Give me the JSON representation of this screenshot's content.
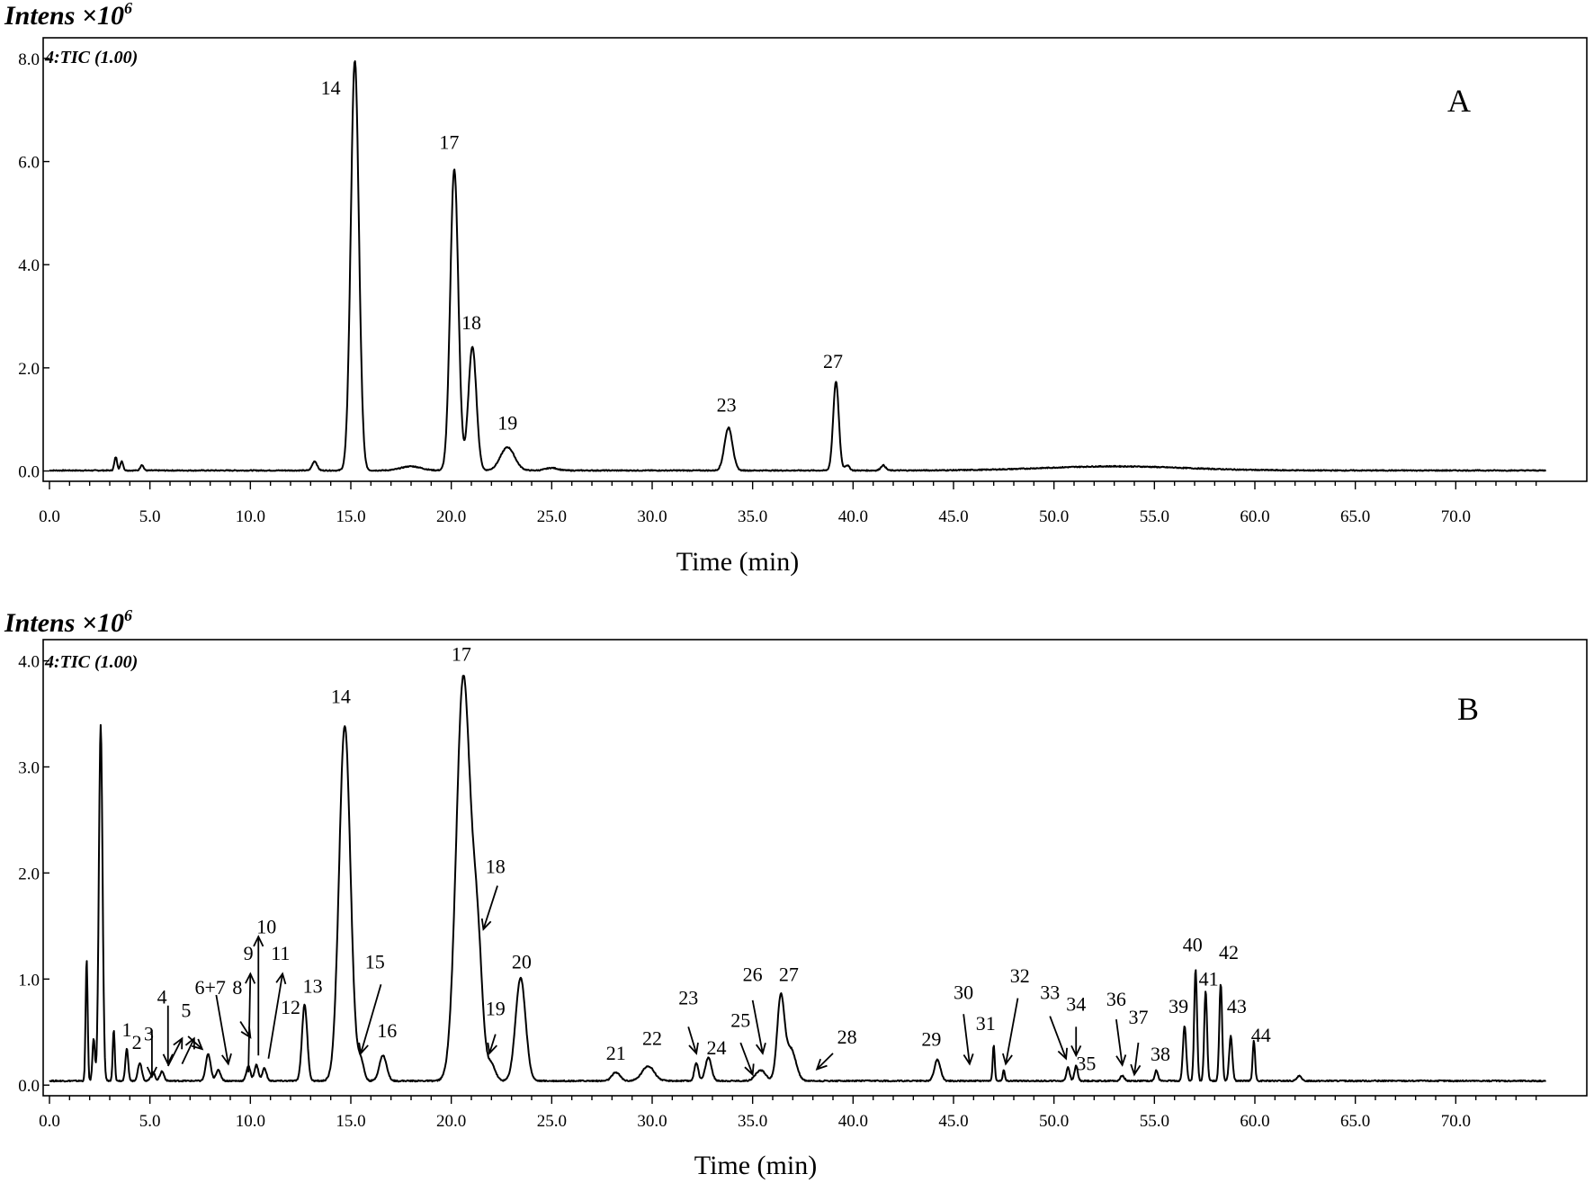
{
  "chart_data": [
    {
      "type": "line",
      "panel_label": "A",
      "ylabel": "Intens ×10",
      "ylabel_exp": "6",
      "trace_label": "4:TIC (1.00)",
      "xlabel": "Time  (min)",
      "xlim": [
        0,
        75
      ],
      "ylim": [
        -0.2,
        8.4
      ],
      "x_ticks": [
        "0.0",
        "5.0",
        "10.0",
        "15.0",
        "20.0",
        "25.0",
        "30.0",
        "35.0",
        "40.0",
        "45.0",
        "50.0",
        "55.0",
        "60.0",
        "65.0",
        "70.0"
      ],
      "y_ticks": [
        "0.0",
        "2.0",
        "4.0",
        "6.0",
        "8.0"
      ],
      "baseline": 0.01,
      "peaks": [
        {
          "t": 3.3,
          "h": 0.26,
          "w": 0.07
        },
        {
          "t": 3.6,
          "h": 0.18,
          "w": 0.07
        },
        {
          "t": 4.6,
          "h": 0.11,
          "w": 0.08
        },
        {
          "t": 13.2,
          "h": 0.18,
          "w": 0.12
        },
        {
          "t": 15.2,
          "h": 7.95,
          "w": 0.2
        },
        {
          "t": 18.0,
          "h": 0.08,
          "w": 0.5
        },
        {
          "t": 20.15,
          "h": 5.85,
          "w": 0.2
        },
        {
          "t": 21.05,
          "h": 2.4,
          "w": 0.2
        },
        {
          "t": 22.8,
          "h": 0.45,
          "w": 0.35
        },
        {
          "t": 25.0,
          "h": 0.05,
          "w": 0.3
        },
        {
          "t": 33.8,
          "h": 0.83,
          "w": 0.2
        },
        {
          "t": 39.15,
          "h": 1.72,
          "w": 0.14
        },
        {
          "t": 39.7,
          "h": 0.1,
          "w": 0.12
        },
        {
          "t": 41.5,
          "h": 0.1,
          "w": 0.12
        },
        {
          "t": 53.0,
          "h": 0.08,
          "w": 3.5
        }
      ],
      "annotations": [
        {
          "label": "14",
          "x": 14.0,
          "y": 7.3
        },
        {
          "label": "17",
          "x": 19.9,
          "y": 6.25
        },
        {
          "label": "18",
          "x": 21.0,
          "y": 2.75
        },
        {
          "label": "19",
          "x": 22.8,
          "y": 0.8
        },
        {
          "label": "23",
          "x": 33.7,
          "y": 1.15
        },
        {
          "label": "27",
          "x": 39.0,
          "y": 2.0
        }
      ]
    },
    {
      "type": "line",
      "panel_label": "B",
      "ylabel": "Intens ×10",
      "ylabel_exp": "6",
      "trace_label": "4:TIC (1.00)",
      "xlabel": "Time  (min)",
      "xlim": [
        0,
        75
      ],
      "ylim": [
        -0.1,
        4.2
      ],
      "x_ticks": [
        "0.0",
        "5.0",
        "10.0",
        "15.0",
        "20.0",
        "25.0",
        "30.0",
        "35.0",
        "40.0",
        "45.0",
        "50.0",
        "55.0",
        "60.0",
        "65.0",
        "70.0"
      ],
      "y_ticks": [
        "0.0",
        "1.0",
        "2.0",
        "3.0",
        "4.0"
      ],
      "baseline": 0.04,
      "peaks": [
        {
          "t": 1.85,
          "h": 1.15,
          "w": 0.05
        },
        {
          "t": 2.2,
          "h": 0.4,
          "w": 0.06
        },
        {
          "t": 2.55,
          "h": 3.35,
          "w": 0.09
        },
        {
          "t": 3.2,
          "h": 0.48,
          "w": 0.05
        },
        {
          "t": 3.85,
          "h": 0.3,
          "w": 0.07
        },
        {
          "t": 4.5,
          "h": 0.17,
          "w": 0.1
        },
        {
          "t": 5.15,
          "h": 0.08,
          "w": 0.1
        },
        {
          "t": 5.6,
          "h": 0.09,
          "w": 0.1
        },
        {
          "t": 7.9,
          "h": 0.25,
          "w": 0.12
        },
        {
          "t": 8.4,
          "h": 0.1,
          "w": 0.12
        },
        {
          "t": 9.9,
          "h": 0.14,
          "w": 0.1
        },
        {
          "t": 10.3,
          "h": 0.15,
          "w": 0.1
        },
        {
          "t": 10.7,
          "h": 0.12,
          "w": 0.1
        },
        {
          "t": 12.7,
          "h": 0.72,
          "w": 0.13
        },
        {
          "t": 14.7,
          "h": 3.35,
          "w": 0.28
        },
        {
          "t": 15.5,
          "h": 0.18,
          "w": 0.15
        },
        {
          "t": 16.6,
          "h": 0.24,
          "w": 0.18
        },
        {
          "t": 20.6,
          "h": 3.8,
          "w": 0.35
        },
        {
          "t": 21.3,
          "h": 1.2,
          "w": 0.25
        },
        {
          "t": 22.0,
          "h": 0.15,
          "w": 0.2
        },
        {
          "t": 23.45,
          "h": 0.97,
          "w": 0.25
        },
        {
          "t": 28.2,
          "h": 0.08,
          "w": 0.2
        },
        {
          "t": 29.8,
          "h": 0.14,
          "w": 0.3
        },
        {
          "t": 32.2,
          "h": 0.17,
          "w": 0.1
        },
        {
          "t": 32.8,
          "h": 0.22,
          "w": 0.15
        },
        {
          "t": 35.4,
          "h": 0.1,
          "w": 0.25
        },
        {
          "t": 36.4,
          "h": 0.78,
          "w": 0.18
        },
        {
          "t": 36.9,
          "h": 0.3,
          "w": 0.25
        },
        {
          "t": 44.2,
          "h": 0.2,
          "w": 0.15
        },
        {
          "t": 47.0,
          "h": 0.34,
          "w": 0.05
        },
        {
          "t": 47.5,
          "h": 0.1,
          "w": 0.05
        },
        {
          "t": 50.7,
          "h": 0.13,
          "w": 0.08
        },
        {
          "t": 51.1,
          "h": 0.14,
          "w": 0.08
        },
        {
          "t": 53.4,
          "h": 0.05,
          "w": 0.1
        },
        {
          "t": 55.1,
          "h": 0.1,
          "w": 0.08
        },
        {
          "t": 56.5,
          "h": 0.52,
          "w": 0.08
        },
        {
          "t": 57.05,
          "h": 1.05,
          "w": 0.07
        },
        {
          "t": 57.55,
          "h": 0.85,
          "w": 0.07
        },
        {
          "t": 58.3,
          "h": 0.92,
          "w": 0.07
        },
        {
          "t": 58.8,
          "h": 0.42,
          "w": 0.08
        },
        {
          "t": 59.95,
          "h": 0.38,
          "w": 0.06
        },
        {
          "t": 62.2,
          "h": 0.05,
          "w": 0.1
        }
      ],
      "annotations": [
        {
          "label": "1",
          "x": 3.85,
          "y": 0.46
        },
        {
          "label": "2",
          "x": 4.35,
          "y": 0.34
        },
        {
          "label": "3",
          "x": 4.95,
          "y": 0.42
        },
        {
          "label": "4",
          "x": 5.6,
          "y": 0.77
        },
        {
          "label": "5",
          "x": 6.8,
          "y": 0.64
        },
        {
          "label": "6+7",
          "x": 8.0,
          "y": 0.86
        },
        {
          "label": "8",
          "x": 9.35,
          "y": 0.86
        },
        {
          "label": "9",
          "x": 9.9,
          "y": 1.18
        },
        {
          "label": "10",
          "x": 10.8,
          "y": 1.43
        },
        {
          "label": "11",
          "x": 11.5,
          "y": 1.18
        },
        {
          "label": "12",
          "x": 12.0,
          "y": 0.67
        },
        {
          "label": "13",
          "x": 13.1,
          "y": 0.87
        },
        {
          "label": "14",
          "x": 14.5,
          "y": 3.6
        },
        {
          "label": "15",
          "x": 16.2,
          "y": 1.1
        },
        {
          "label": "16",
          "x": 16.8,
          "y": 0.45
        },
        {
          "label": "17",
          "x": 20.5,
          "y": 4.0
        },
        {
          "label": "18",
          "x": 22.2,
          "y": 2.0
        },
        {
          "label": "19",
          "x": 22.2,
          "y": 0.66
        },
        {
          "label": "20",
          "x": 23.5,
          "y": 1.1
        },
        {
          "label": "21",
          "x": 28.2,
          "y": 0.24
        },
        {
          "label": "22",
          "x": 30.0,
          "y": 0.38
        },
        {
          "label": "23",
          "x": 31.8,
          "y": 0.76
        },
        {
          "label": "24",
          "x": 33.2,
          "y": 0.29
        },
        {
          "label": "25",
          "x": 34.4,
          "y": 0.55
        },
        {
          "label": "26",
          "x": 35.0,
          "y": 0.98
        },
        {
          "label": "27",
          "x": 36.8,
          "y": 0.98
        },
        {
          "label": "28",
          "x": 39.7,
          "y": 0.39
        },
        {
          "label": "29",
          "x": 43.9,
          "y": 0.37
        },
        {
          "label": "30",
          "x": 45.5,
          "y": 0.81
        },
        {
          "label": "31",
          "x": 46.6,
          "y": 0.52
        },
        {
          "label": "32",
          "x": 48.3,
          "y": 0.97
        },
        {
          "label": "33",
          "x": 49.8,
          "y": 0.81
        },
        {
          "label": "34",
          "x": 51.1,
          "y": 0.7
        },
        {
          "label": "35",
          "x": 51.6,
          "y": 0.14
        },
        {
          "label": "36",
          "x": 53.1,
          "y": 0.75
        },
        {
          "label": "37",
          "x": 54.2,
          "y": 0.58
        },
        {
          "label": "38",
          "x": 55.3,
          "y": 0.23
        },
        {
          "label": "39",
          "x": 56.2,
          "y": 0.68
        },
        {
          "label": "40",
          "x": 56.9,
          "y": 1.26
        },
        {
          "label": "41",
          "x": 57.7,
          "y": 0.94
        },
        {
          "label": "42",
          "x": 58.7,
          "y": 1.19
        },
        {
          "label": "43",
          "x": 59.1,
          "y": 0.68
        },
        {
          "label": "44",
          "x": 60.3,
          "y": 0.41
        }
      ],
      "arrows": [
        {
          "from": [
            5.1,
            0.52
          ],
          "to": [
            5.1,
            0.08
          ]
        },
        {
          "from": [
            5.9,
            0.75
          ],
          "to": [
            5.9,
            0.2
          ]
        },
        {
          "from": [
            5.9,
            0.18
          ],
          "to": [
            6.6,
            0.44
          ]
        },
        {
          "from": [
            6.6,
            0.2
          ],
          "to": [
            7.2,
            0.44
          ]
        },
        {
          "from": [
            6.9,
            0.46
          ],
          "to": [
            7.6,
            0.34
          ]
        },
        {
          "from": [
            8.3,
            0.85
          ],
          "to": [
            8.9,
            0.2
          ]
        },
        {
          "from": [
            9.5,
            0.6
          ],
          "to": [
            10.0,
            0.45
          ]
        },
        {
          "from": [
            9.9,
            0.12
          ],
          "to": [
            10.0,
            1.05
          ]
        },
        {
          "from": [
            10.4,
            0.28
          ],
          "to": [
            10.4,
            1.4
          ]
        },
        {
          "from": [
            10.9,
            0.25
          ],
          "to": [
            11.6,
            1.05
          ]
        },
        {
          "from": [
            16.5,
            0.95
          ],
          "to": [
            15.5,
            0.3
          ]
        },
        {
          "from": [
            22.3,
            1.88
          ],
          "to": [
            21.6,
            1.47
          ]
        },
        {
          "from": [
            22.2,
            0.48
          ],
          "to": [
            21.9,
            0.3
          ]
        },
        {
          "from": [
            31.8,
            0.55
          ],
          "to": [
            32.2,
            0.3
          ]
        },
        {
          "from": [
            34.4,
            0.4
          ],
          "to": [
            35.0,
            0.1
          ]
        },
        {
          "from": [
            35.0,
            0.8
          ],
          "to": [
            35.5,
            0.3
          ]
        },
        {
          "from": [
            39.0,
            0.3
          ],
          "to": [
            38.2,
            0.15
          ]
        },
        {
          "from": [
            45.5,
            0.67
          ],
          "to": [
            45.8,
            0.2
          ]
        },
        {
          "from": [
            48.2,
            0.82
          ],
          "to": [
            47.6,
            0.2
          ]
        },
        {
          "from": [
            49.8,
            0.65
          ],
          "to": [
            50.6,
            0.25
          ]
        },
        {
          "from": [
            51.1,
            0.55
          ],
          "to": [
            51.1,
            0.28
          ]
        },
        {
          "from": [
            53.1,
            0.62
          ],
          "to": [
            53.4,
            0.19
          ]
        },
        {
          "from": [
            54.2,
            0.4
          ],
          "to": [
            54.0,
            0.1
          ]
        }
      ]
    }
  ]
}
